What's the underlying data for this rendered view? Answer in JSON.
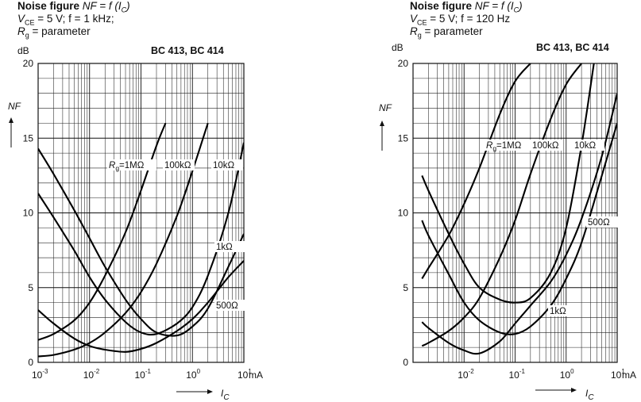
{
  "charts": [
    {
      "header": {
        "line1_bold": "Noise figure",
        "line1_rest": "NF = f (I",
        "line1_sub": "C",
        "line1_end": ")",
        "line2": "V",
        "line2_sub": "CE",
        "line2_rest": " = 5 V; f = 1 kHz;",
        "line3": "R",
        "line3_sub": "g",
        "line3_rest": " = parameter"
      },
      "part_label": "BC 413, BC 414",
      "y_unit": "dB",
      "y_symbol": "NF",
      "x_unit": "mA",
      "x_symbol": "I",
      "x_symbol_sub": "C"
    },
    {
      "header": {
        "line1_bold": "Noise figure",
        "line1_rest": "NF = f (I",
        "line1_sub": "C",
        "line1_end": ")",
        "line2": "V",
        "line2_sub": "CE",
        "line2_rest": " = 5 V; f = 120 Hz",
        "line3": "R",
        "line3_sub": "g",
        "line3_rest": " = parameter"
      },
      "part_label": "BC 413, BC 414",
      "y_unit": "dB",
      "y_symbol": "NF",
      "x_unit": "mA",
      "x_symbol": "I",
      "x_symbol_sub": "C"
    }
  ],
  "chart_data": [
    {
      "type": "line",
      "title": "Noise figure NF = f (IC)",
      "subtitle": "VCE = 5 V; f = 1 kHz; Rg = parameter",
      "xlabel": "IC",
      "ylabel": "NF",
      "x_unit": "mA",
      "y_unit": "dB",
      "x_scale": "log",
      "xlim": [
        0.001,
        10
      ],
      "ylim": [
        0,
        20
      ],
      "x_ticks": [
        {
          "base": "10",
          "exp": "-3"
        },
        {
          "base": "10",
          "exp": "-2"
        },
        {
          "base": "10",
          "exp": "-1"
        },
        {
          "base": "10",
          "exp": "0"
        },
        {
          "base": "10",
          "exp": "1"
        }
      ],
      "y_ticks": [
        "0",
        "5",
        "10",
        "15",
        "20"
      ],
      "grid": true,
      "legend": "none",
      "series": [
        {
          "name": "Rg = 1 MΩ",
          "label_prefix": "R",
          "label_sub": "g",
          "label_suffix": "=1MΩ",
          "x": [
            0.001,
            0.002,
            0.005,
            0.01,
            0.02,
            0.05,
            0.1,
            0.2,
            0.3
          ],
          "y": [
            1.5,
            1.9,
            2.8,
            4.0,
            5.8,
            8.7,
            11.5,
            14.5,
            16.0
          ]
        },
        {
          "name": "Rg = 100 kΩ",
          "label_prefix": "",
          "label_sub": "",
          "label_suffix": "100kΩ",
          "x": [
            0.001,
            0.002,
            0.005,
            0.01,
            0.02,
            0.05,
            0.1,
            0.2,
            0.5,
            1,
            2
          ],
          "y": [
            0.4,
            0.5,
            0.85,
            1.3,
            2.0,
            3.3,
            4.7,
            6.6,
            9.8,
            12.8,
            16.0
          ]
        },
        {
          "name": "Rg = 10 kΩ",
          "label_prefix": "",
          "label_sub": "",
          "label_suffix": "10kΩ",
          "x": [
            0.001,
            0.002,
            0.005,
            0.01,
            0.02,
            0.05,
            0.1,
            0.2,
            0.5,
            1,
            2,
            5,
            10
          ],
          "y": [
            11.3,
            9.7,
            7.5,
            5.7,
            4.2,
            2.7,
            2.0,
            1.9,
            2.6,
            3.7,
            5.8,
            10.0,
            14.7
          ]
        },
        {
          "name": "Rg = 1 kΩ",
          "label_prefix": "",
          "label_sub": "",
          "label_suffix": "1kΩ",
          "x": [
            0.001,
            0.002,
            0.005,
            0.01,
            0.02,
            0.05,
            0.1,
            0.2,
            0.5,
            1,
            2,
            5,
            10
          ],
          "y": [
            14.3,
            12.6,
            10.2,
            8.3,
            6.4,
            4.2,
            2.9,
            2.0,
            1.8,
            2.4,
            3.6,
            6.4,
            8.6
          ]
        },
        {
          "name": "Rg = 500 Ω",
          "label_prefix": "",
          "label_sub": "",
          "label_suffix": "500Ω",
          "x": [
            0.001,
            0.002,
            0.005,
            0.01,
            0.02,
            0.05,
            0.1,
            0.2,
            0.5,
            1,
            2,
            5,
            10
          ],
          "y": [
            3.5,
            2.6,
            1.6,
            1.1,
            0.85,
            0.7,
            0.9,
            1.3,
            2.1,
            2.9,
            4.0,
            5.7,
            6.8
          ]
        }
      ]
    },
    {
      "type": "line",
      "title": "Noise figure NF = f (IC)",
      "subtitle": "VCE = 5 V; f = 120 Hz; Rg = parameter",
      "xlabel": "IC",
      "ylabel": "NF",
      "x_unit": "mA",
      "y_unit": "dB",
      "x_scale": "log",
      "xlim": [
        0.001,
        10
      ],
      "ylim": [
        0,
        20
      ],
      "x_ticks": [
        {
          "base": "10",
          "exp": "-2"
        },
        {
          "base": "10",
          "exp": "-1"
        },
        {
          "base": "10",
          "exp": "0"
        },
        {
          "base": "10",
          "exp": "1"
        }
      ],
      "y_ticks": [
        "0",
        "5",
        "10",
        "15",
        "20"
      ],
      "grid": true,
      "legend": "none",
      "series": [
        {
          "name": "Rg = 1 MΩ",
          "label_prefix": "R",
          "label_sub": "g",
          "label_suffix": "=1MΩ",
          "x": [
            0.0015,
            0.002,
            0.005,
            0.01,
            0.02,
            0.05,
            0.1,
            0.2
          ],
          "y": [
            5.6,
            6.3,
            8.5,
            10.6,
            13.0,
            16.6,
            18.8,
            20.0
          ]
        },
        {
          "name": "Rg = 100 kΩ",
          "label_prefix": "",
          "label_sub": "",
          "label_suffix": "100kΩ",
          "x": [
            0.0015,
            0.002,
            0.005,
            0.01,
            0.02,
            0.05,
            0.1,
            0.2,
            0.5,
            1,
            2
          ],
          "y": [
            1.1,
            1.3,
            2.1,
            3.0,
            4.3,
            7.0,
            9.5,
            12.6,
            16.3,
            18.6,
            20.0
          ]
        },
        {
          "name": "Rg = 10 kΩ",
          "label_prefix": "",
          "label_sub": "",
          "label_suffix": "10kΩ",
          "x": [
            0.0015,
            0.002,
            0.005,
            0.01,
            0.02,
            0.05,
            0.1,
            0.2,
            0.5,
            1,
            2,
            3.5
          ],
          "y": [
            12.5,
            11.5,
            8.6,
            6.6,
            5.0,
            4.2,
            4.0,
            4.3,
            6.0,
            9.0,
            14.5,
            20.0
          ]
        },
        {
          "name": "Rg = 1 kΩ",
          "label_prefix": "",
          "label_sub": "",
          "label_suffix": "1kΩ",
          "x": [
            0.0015,
            0.002,
            0.005,
            0.01,
            0.02,
            0.05,
            0.1,
            0.2,
            0.5,
            1,
            2,
            5,
            10
          ],
          "y": [
            9.5,
            8.5,
            5.9,
            4.0,
            2.8,
            2.0,
            1.9,
            2.4,
            3.8,
            5.6,
            8.0,
            12.5,
            16.0
          ]
        },
        {
          "name": "Rg = 500 Ω",
          "label_prefix": "",
          "label_sub": "",
          "label_suffix": "500Ω",
          "x": [
            0.0015,
            0.002,
            0.005,
            0.01,
            0.02,
            0.05,
            0.1,
            0.2,
            0.5,
            1,
            2,
            5,
            10
          ],
          "y": [
            2.7,
            2.3,
            1.3,
            0.8,
            0.6,
            1.4,
            2.6,
            3.8,
            5.4,
            7.2,
            9.6,
            13.8,
            18.0
          ]
        }
      ]
    }
  ]
}
